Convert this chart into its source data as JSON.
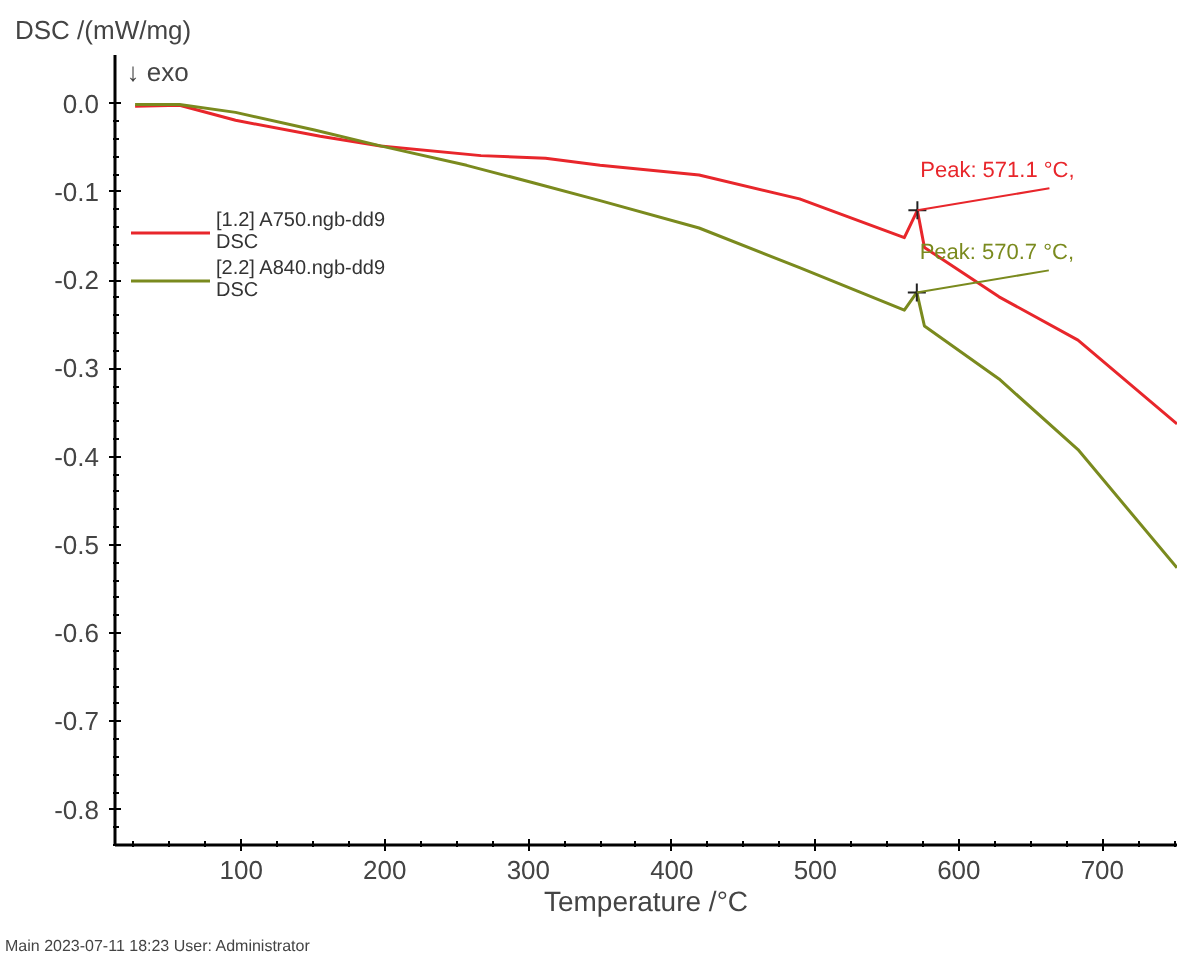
{
  "chart_data": {
    "type": "line",
    "xlabel": "Temperature /°C",
    "ylabel": "DSC /(mW/mg)",
    "xlim": [
      12,
      752
    ],
    "ylim": [
      -0.84,
      0.055
    ],
    "xticks": [
      100,
      200,
      300,
      400,
      500,
      600,
      700
    ],
    "yticks": [
      {
        "value": 0,
        "label": "0.0"
      },
      {
        "value": -0.1,
        "label": "-0.1"
      },
      {
        "value": -0.2,
        "label": "-0.2"
      },
      {
        "value": -0.3,
        "label": "-0.3"
      },
      {
        "value": -0.4,
        "label": "-0.4"
      },
      {
        "value": -0.5,
        "label": "-0.5"
      },
      {
        "value": -0.6,
        "label": "-0.6"
      },
      {
        "value": -0.7,
        "label": "-0.7"
      },
      {
        "value": -0.8,
        "label": "-0.8"
      }
    ],
    "grid": false,
    "legend": "top left",
    "marker": "none",
    "line_style": "solid",
    "series": [
      {
        "name": "[1.2] A750.ngb-dd9\nDSC",
        "color": "#e8262b",
        "x": [
          26,
          57,
          96,
          155,
          197,
          267,
          312,
          350,
          419,
          489,
          562,
          571.1,
          576,
          628,
          683,
          752
        ],
        "values": [
          -0.003,
          -0.002,
          -0.019,
          -0.037,
          -0.048,
          -0.059,
          -0.062,
          -0.07,
          -0.081,
          -0.108,
          -0.152,
          -0.121,
          -0.163,
          -0.219,
          -0.268,
          -0.363
        ]
      },
      {
        "name": "[2.2] A840.ngb-dd9\nDSC",
        "color": "#7a8a1e",
        "x": [
          26,
          57,
          96,
          151,
          197,
          257,
          304,
          350,
          419,
          489,
          562,
          570.7,
          576,
          628,
          683,
          752
        ],
        "values": [
          -0.001,
          -0.001,
          -0.01,
          -0.03,
          -0.048,
          -0.07,
          -0.09,
          -0.11,
          -0.141,
          -0.186,
          -0.234,
          -0.214,
          -0.252,
          -0.312,
          -0.392,
          -0.526
        ]
      }
    ],
    "annotations": [
      "↓ exo",
      {
        "text": "Peak: 571.1 °C,",
        "x": 571.1,
        "y": -0.121
      },
      {
        "text": "Peak: 570.7 °C,",
        "x": 570.7,
        "y": -0.214
      },
      "Main   2023-07-11 18:23   User: Administrator"
    ]
  }
}
